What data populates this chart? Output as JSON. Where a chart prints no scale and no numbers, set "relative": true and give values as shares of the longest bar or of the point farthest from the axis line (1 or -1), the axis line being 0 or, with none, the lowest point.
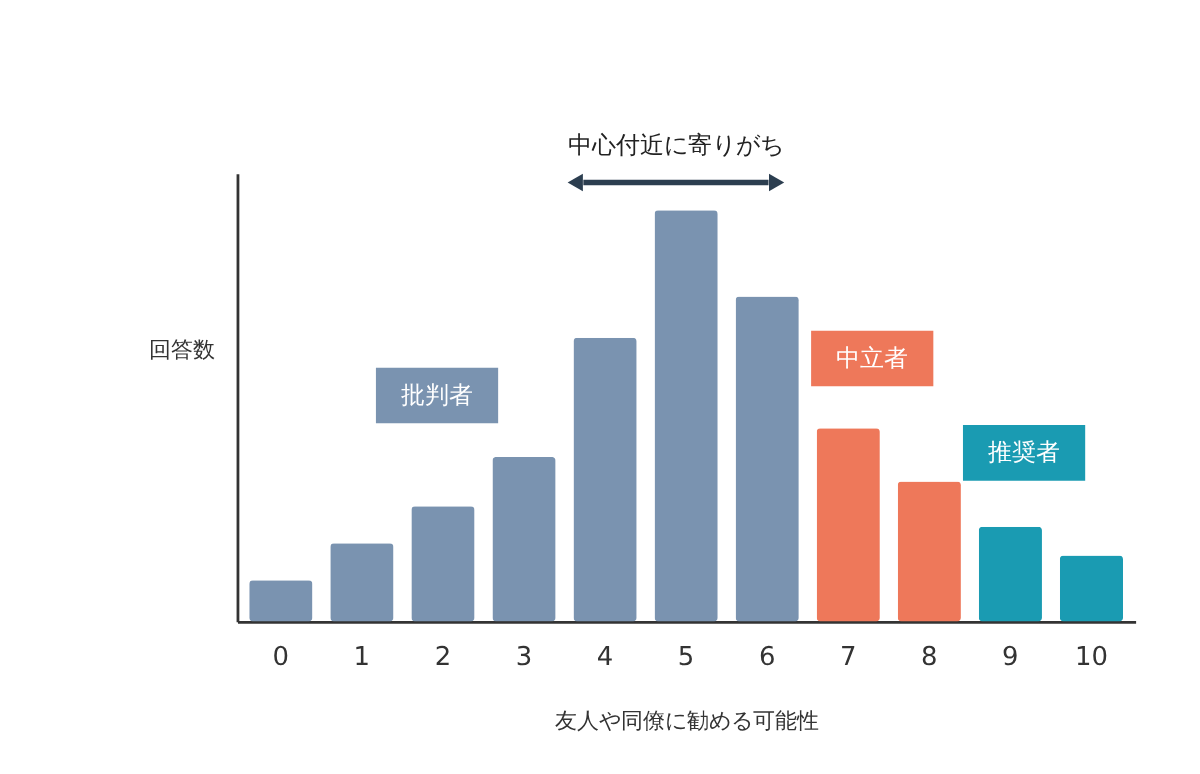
{
  "chart_data": {
    "type": "bar",
    "relative": true,
    "categories": [
      "0",
      "1",
      "2",
      "3",
      "4",
      "5",
      "6",
      "7",
      "8",
      "9",
      "10"
    ],
    "values": [
      0.1,
      0.19,
      0.28,
      0.4,
      0.69,
      1,
      0.79,
      0.47,
      0.34,
      0.23,
      0.16
    ],
    "colors": [
      "#7a93b0",
      "#7a93b0",
      "#7a93b0",
      "#7a93b0",
      "#7a93b0",
      "#7a93b0",
      "#7a93b0",
      "#ee785a",
      "#ee785a",
      "#1a9bb2",
      "#1a9bb2"
    ],
    "xlabel": "友人や同僚に勧める可能性",
    "ylabel": "回答数",
    "annotations": [
      "中心付近に寄りがち",
      "批判者",
      "中立者",
      "推奨者"
    ],
    "grid": false
  }
}
